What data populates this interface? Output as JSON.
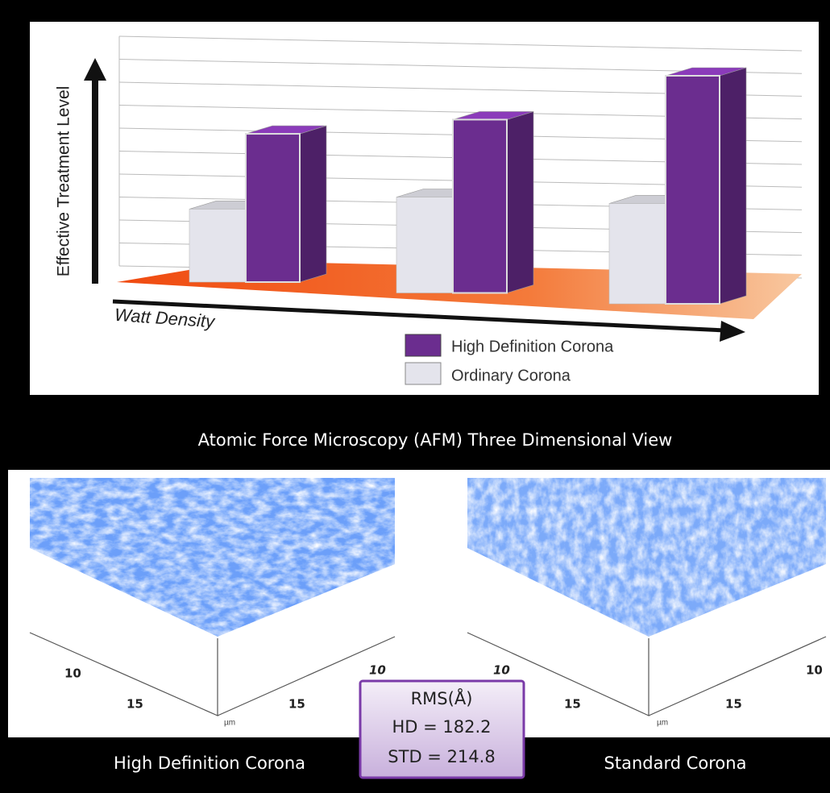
{
  "chart_data": {
    "type": "bar3d",
    "y_label": "Effective Treatment Level",
    "x_label": "Watt Density",
    "categories": [
      null,
      null,
      null
    ],
    "ylim": [
      0,
      10
    ],
    "series": [
      {
        "name": "Ordinary Corona",
        "color": "#e4e4ec",
        "values": [
          3.2,
          4.2,
          4.4
        ]
      },
      {
        "name": "High Definition Corona",
        "color": "#6b2d8f",
        "values": [
          6.5,
          7.6,
          10
        ]
      }
    ]
  },
  "afm": {
    "title": "Atomic Force Microscopy (AFM) Three Dimensional View",
    "panels": [
      {
        "caption": "High Definition Corona",
        "left_ticks": [
          "10",
          "15"
        ],
        "right_ticks": [
          "10",
          "15"
        ],
        "unit": "µm"
      },
      {
        "caption": "Standard Corona",
        "left_ticks": [
          "10",
          "15"
        ],
        "right_ticks": [
          "10",
          "15"
        ],
        "unit": "µm"
      }
    ],
    "rms": {
      "title": "RMS(Å)",
      "lines": [
        "HD = 182.2",
        "STD = 214.8"
      ]
    }
  }
}
